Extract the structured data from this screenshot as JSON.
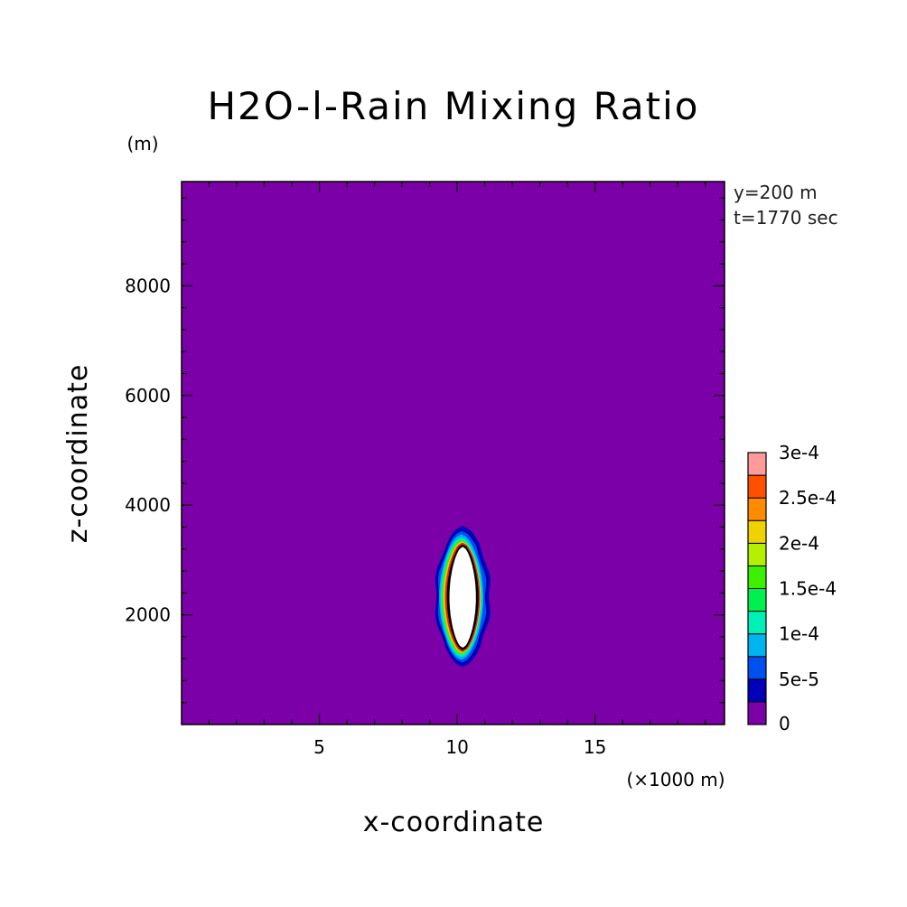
{
  "chart_data": {
    "type": "contour",
    "title": "H2O-l-Rain Mixing Ratio",
    "xlabel": "x-coordinate",
    "ylabel": "z-coordinate",
    "x_unit_label": "(×1000 m)",
    "y_unit_label": "(m)",
    "annotations": [
      "y=200 m",
      "t=1770 sec"
    ],
    "xlim": [
      0,
      19.7
    ],
    "ylim": [
      0,
      9900
    ],
    "x_ticks": [
      {
        "value": 5,
        "label": "5"
      },
      {
        "value": 10,
        "label": "10"
      },
      {
        "value": 15,
        "label": "15"
      }
    ],
    "y_ticks": [
      {
        "value": 2000,
        "label": "2000"
      },
      {
        "value": 4000,
        "label": "4000"
      },
      {
        "value": 6000,
        "label": "6000"
      },
      {
        "value": 8000,
        "label": "8000"
      }
    ],
    "background_color": "#7b00a8",
    "max_region_color": "#ffffff",
    "contour_levels": [
      {
        "min": 0,
        "color": "#7b00a8"
      },
      {
        "min": 2.5e-05,
        "color": "#0000b8"
      },
      {
        "min": 5e-05,
        "color": "#0050f0"
      },
      {
        "min": 7.5e-05,
        "color": "#00b4f0"
      },
      {
        "min": 0.0001,
        "color": "#00f0b8"
      },
      {
        "min": 0.000125,
        "color": "#00f050"
      },
      {
        "min": 0.00015,
        "color": "#3cf000"
      },
      {
        "min": 0.000175,
        "color": "#b4f000"
      },
      {
        "min": 0.0002,
        "color": "#f0d200"
      },
      {
        "min": 0.000225,
        "color": "#ff8c00"
      },
      {
        "min": 0.00025,
        "color": "#ff5000"
      },
      {
        "min": 0.000275,
        "color": "#ff2d2d"
      },
      {
        "min": 0.0003,
        "color": "#ff9a9a"
      }
    ],
    "colorbar_labels": [
      {
        "value": 0,
        "label": "0"
      },
      {
        "value": 5e-05,
        "label": "5e-5"
      },
      {
        "value": 0.0001,
        "label": "1e-4"
      },
      {
        "value": 0.00015,
        "label": "1.5e-4"
      },
      {
        "value": 0.0002,
        "label": "2e-4"
      },
      {
        "value": 0.00025,
        "label": "2.5e-4"
      },
      {
        "value": 0.0003,
        "label": "3e-4"
      }
    ],
    "feature": {
      "description": "rain shaft",
      "center_x": 10.2,
      "bands": [
        {
          "level_index": 1,
          "x_min": 9.2,
          "x_max": 11.2,
          "z_min": 1050,
          "z_max": 3620
        },
        {
          "level_index": 2,
          "x_min": 9.3,
          "x_max": 11.05,
          "z_min": 1130,
          "z_max": 3530
        },
        {
          "level_index": 3,
          "x_min": 9.35,
          "x_max": 10.95,
          "z_min": 1180,
          "z_max": 3470
        },
        {
          "level_index": 4,
          "x_min": 9.4,
          "x_max": 10.9,
          "z_min": 1230,
          "z_max": 3410
        },
        {
          "level_index": 6,
          "x_min": 9.45,
          "x_max": 10.85,
          "z_min": 1270,
          "z_max": 3370
        },
        {
          "level_index": 8,
          "x_min": 9.5,
          "x_max": 10.85,
          "z_min": 1300,
          "z_max": 3340
        },
        {
          "level_index": 10,
          "x_min": 9.55,
          "x_max": 10.82,
          "z_min": 1320,
          "z_max": 3320
        },
        {
          "level_index": 13,
          "x_min": 9.6,
          "x_max": 10.8,
          "z_min": 1340,
          "z_max": 3300
        }
      ]
    }
  }
}
